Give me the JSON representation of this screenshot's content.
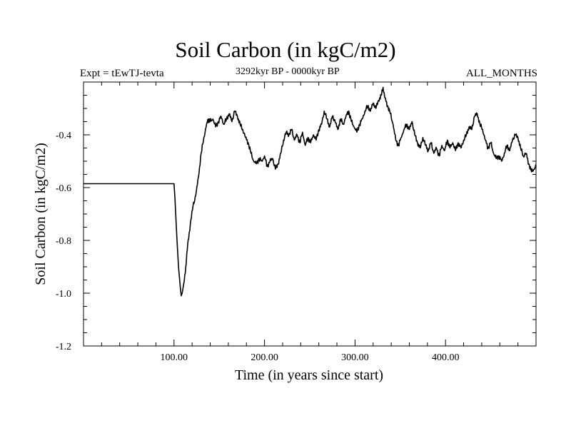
{
  "chart_data": {
    "type": "line",
    "title": "Soil Carbon (in kgC/m2)",
    "subtitle_left": "Expt = tEwTJ-tevta",
    "subtitle_center": "3292kyr BP - 0000kyr BP",
    "subtitle_right": "ALL_MONTHS",
    "xlabel": "Time (in years since start)",
    "ylabel": "Soil Carbon (in kgC/m2)",
    "xlim": [
      0,
      500
    ],
    "ylim": [
      -1.2,
      -0.2
    ],
    "x_ticks": [
      100,
      200,
      300,
      400
    ],
    "x_tick_labels": [
      "100.00",
      "200.00",
      "300.00",
      "400.00"
    ],
    "y_ticks": [
      -1.2,
      -1.0,
      -0.8,
      -0.6,
      -0.4
    ],
    "y_tick_labels": [
      "-1.2",
      "-1.0",
      "-0.8",
      "-0.6",
      "-0.4"
    ],
    "series": [
      {
        "name": "Soil Carbon",
        "color": "#000000",
        "x": [
          0,
          99,
          100,
          101,
          103,
          105,
          107,
          108,
          109,
          111,
          113,
          115,
          118,
          121,
          124,
          127,
          130,
          133,
          136,
          138,
          140,
          143,
          146,
          149,
          152,
          155,
          158,
          161,
          164,
          167,
          170,
          173,
          176,
          179,
          182,
          185,
          188,
          191,
          194,
          197,
          200,
          203,
          206,
          209,
          212,
          215,
          218,
          221,
          224,
          227,
          230,
          233,
          236,
          239,
          242,
          245,
          248,
          251,
          254,
          257,
          260,
          263,
          266,
          269,
          272,
          275,
          278,
          281,
          284,
          287,
          290,
          293,
          296,
          299,
          302,
          305,
          308,
          311,
          314,
          317,
          320,
          323,
          326,
          329,
          331,
          333,
          336,
          339,
          342,
          345,
          348,
          351,
          354,
          357,
          360,
          363,
          366,
          369,
          372,
          375,
          378,
          381,
          384,
          387,
          390,
          393,
          396,
          399,
          402,
          405,
          408,
          411,
          414,
          417,
          420,
          423,
          426,
          429,
          432,
          435,
          438,
          441,
          444,
          447,
          450,
          453,
          456,
          459,
          462,
          465,
          468,
          471,
          474,
          477,
          480,
          483,
          486,
          489,
          492,
          495,
          498,
          500
        ],
        "y": [
          -0.585,
          -0.585,
          -0.585,
          -0.64,
          -0.78,
          -0.9,
          -0.98,
          -1.01,
          -1.0,
          -0.96,
          -0.9,
          -0.82,
          -0.74,
          -0.67,
          -0.63,
          -0.56,
          -0.47,
          -0.41,
          -0.36,
          -0.34,
          -0.35,
          -0.34,
          -0.37,
          -0.35,
          -0.33,
          -0.36,
          -0.34,
          -0.32,
          -0.35,
          -0.31,
          -0.33,
          -0.36,
          -0.38,
          -0.41,
          -0.43,
          -0.47,
          -0.5,
          -0.51,
          -0.49,
          -0.5,
          -0.48,
          -0.52,
          -0.5,
          -0.49,
          -0.53,
          -0.51,
          -0.47,
          -0.42,
          -0.39,
          -0.4,
          -0.38,
          -0.42,
          -0.4,
          -0.43,
          -0.39,
          -0.44,
          -0.41,
          -0.43,
          -0.4,
          -0.42,
          -0.38,
          -0.36,
          -0.31,
          -0.34,
          -0.37,
          -0.33,
          -0.35,
          -0.38,
          -0.34,
          -0.36,
          -0.33,
          -0.31,
          -0.35,
          -0.37,
          -0.39,
          -0.36,
          -0.34,
          -0.31,
          -0.29,
          -0.31,
          -0.28,
          -0.3,
          -0.27,
          -0.25,
          -0.22,
          -0.26,
          -0.29,
          -0.32,
          -0.36,
          -0.42,
          -0.44,
          -0.41,
          -0.38,
          -0.36,
          -0.38,
          -0.35,
          -0.4,
          -0.43,
          -0.45,
          -0.41,
          -0.44,
          -0.46,
          -0.43,
          -0.47,
          -0.45,
          -0.48,
          -0.44,
          -0.46,
          -0.42,
          -0.45,
          -0.43,
          -0.46,
          -0.43,
          -0.45,
          -0.42,
          -0.4,
          -0.37,
          -0.38,
          -0.33,
          -0.32,
          -0.36,
          -0.38,
          -0.42,
          -0.45,
          -0.43,
          -0.47,
          -0.49,
          -0.48,
          -0.5,
          -0.47,
          -0.44,
          -0.46,
          -0.42,
          -0.4,
          -0.41,
          -0.45,
          -0.48,
          -0.47,
          -0.51,
          -0.54,
          -0.53,
          -0.52
        ]
      }
    ]
  }
}
